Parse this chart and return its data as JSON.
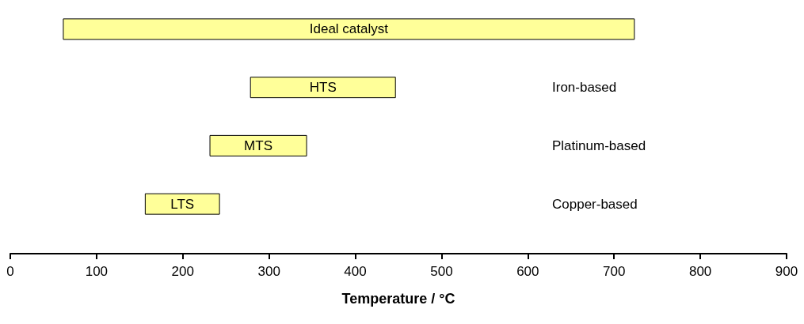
{
  "chart_data": {
    "type": "bar",
    "orientation": "horizontal",
    "xlabel": "Temperature / °C",
    "categories": [
      "Ideal catalyst",
      "HTS",
      "MTS",
      "LTS"
    ],
    "base": [
      61,
      278,
      231,
      156
    ],
    "values": [
      663,
      169,
      113,
      87
    ],
    "color": "#ffff99",
    "xlim": [
      0,
      900
    ],
    "xticks": [
      0,
      100,
      200,
      300,
      400,
      500,
      600,
      700,
      800,
      900
    ],
    "grid": false,
    "tick_labels": "x",
    "annotations": [
      "Iron-based",
      "Platinum-based",
      "Copper-based"
    ]
  }
}
